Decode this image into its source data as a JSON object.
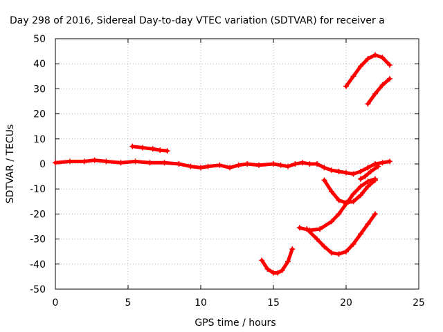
{
  "chart_data": {
    "type": "scatter",
    "title": "Day 298 of 2016, Sidereal Day-to-day VTEC variation (SDTVAR) for receiver a",
    "xlabel": "GPS time / hours",
    "ylabel": "SDTVAR / TECUs",
    "xlim": [
      0,
      25
    ],
    "ylim": [
      -50,
      50
    ],
    "xticks": [
      0,
      5,
      10,
      15,
      20,
      25
    ],
    "yticks": [
      -50,
      -40,
      -30,
      -20,
      -10,
      0,
      10,
      20,
      30,
      40,
      50
    ],
    "grid": true,
    "marker_color": "#ff0000",
    "series": [
      {
        "x": [
          0,
          1,
          2,
          2.7,
          3.5,
          4.5,
          5.5,
          6.5,
          7.5,
          8.5,
          9.3,
          10,
          10.5,
          11.3,
          12,
          12.6,
          13.2,
          14,
          15,
          15.5,
          16,
          16.5,
          17,
          17.5,
          18,
          18.5,
          19,
          19.5,
          20,
          20.5,
          21,
          21.5,
          22,
          22.5,
          23
        ],
        "y": [
          0.5,
          1,
          1,
          1.5,
          1,
          0.5,
          1,
          0.5,
          0.5,
          0,
          -1,
          -1.5,
          -1,
          -0.5,
          -1.5,
          -0.5,
          0,
          -0.5,
          0,
          -0.5,
          -1,
          0,
          0.5,
          0,
          0,
          -1.5,
          -2.5,
          -3,
          -3.5,
          -4,
          -3,
          -1.5,
          0,
          0.5,
          1
        ]
      },
      {
        "x": [
          5.3,
          6,
          6.7,
          7.2,
          7.7
        ],
        "y": [
          7,
          6.5,
          6,
          5.5,
          5.2
        ]
      },
      {
        "x": [
          20,
          20.5,
          21,
          21.5,
          22,
          22.5,
          23
        ],
        "y": [
          31,
          35,
          39,
          42,
          43.5,
          42.5,
          39.5
        ]
      },
      {
        "x": [
          21.5,
          22,
          22.5,
          23
        ],
        "y": [
          24,
          28,
          31.5,
          34
        ]
      },
      {
        "x": [
          18.5,
          19,
          19.5,
          20,
          20.5,
          21,
          21.5,
          22
        ],
        "y": [
          -6.5,
          -11,
          -14.5,
          -15.5,
          -15,
          -12.5,
          -9,
          -6.5
        ]
      },
      {
        "x": [
          16.8,
          17.5,
          18.2,
          19,
          19.5,
          20,
          20.5,
          21,
          21.5,
          22
        ],
        "y": [
          -25.5,
          -26.5,
          -26,
          -23,
          -20,
          -16,
          -12,
          -9,
          -7,
          -6
        ]
      },
      {
        "x": [
          17.3,
          18,
          18.5,
          19,
          19.5,
          20,
          20.5,
          21,
          21.5,
          22
        ],
        "y": [
          -26,
          -30,
          -33,
          -35.5,
          -36,
          -35,
          -32,
          -28,
          -24,
          -20
        ]
      },
      {
        "x": [
          14.2,
          14.6,
          15,
          15.3,
          15.6,
          16,
          16.3
        ],
        "y": [
          -38.5,
          -42,
          -43.5,
          -43.5,
          -42.5,
          -39,
          -34
        ]
      },
      {
        "x": [
          21,
          21.3,
          21.7,
          22.2
        ],
        "y": [
          -6,
          -5,
          -3,
          -1
        ]
      }
    ]
  }
}
